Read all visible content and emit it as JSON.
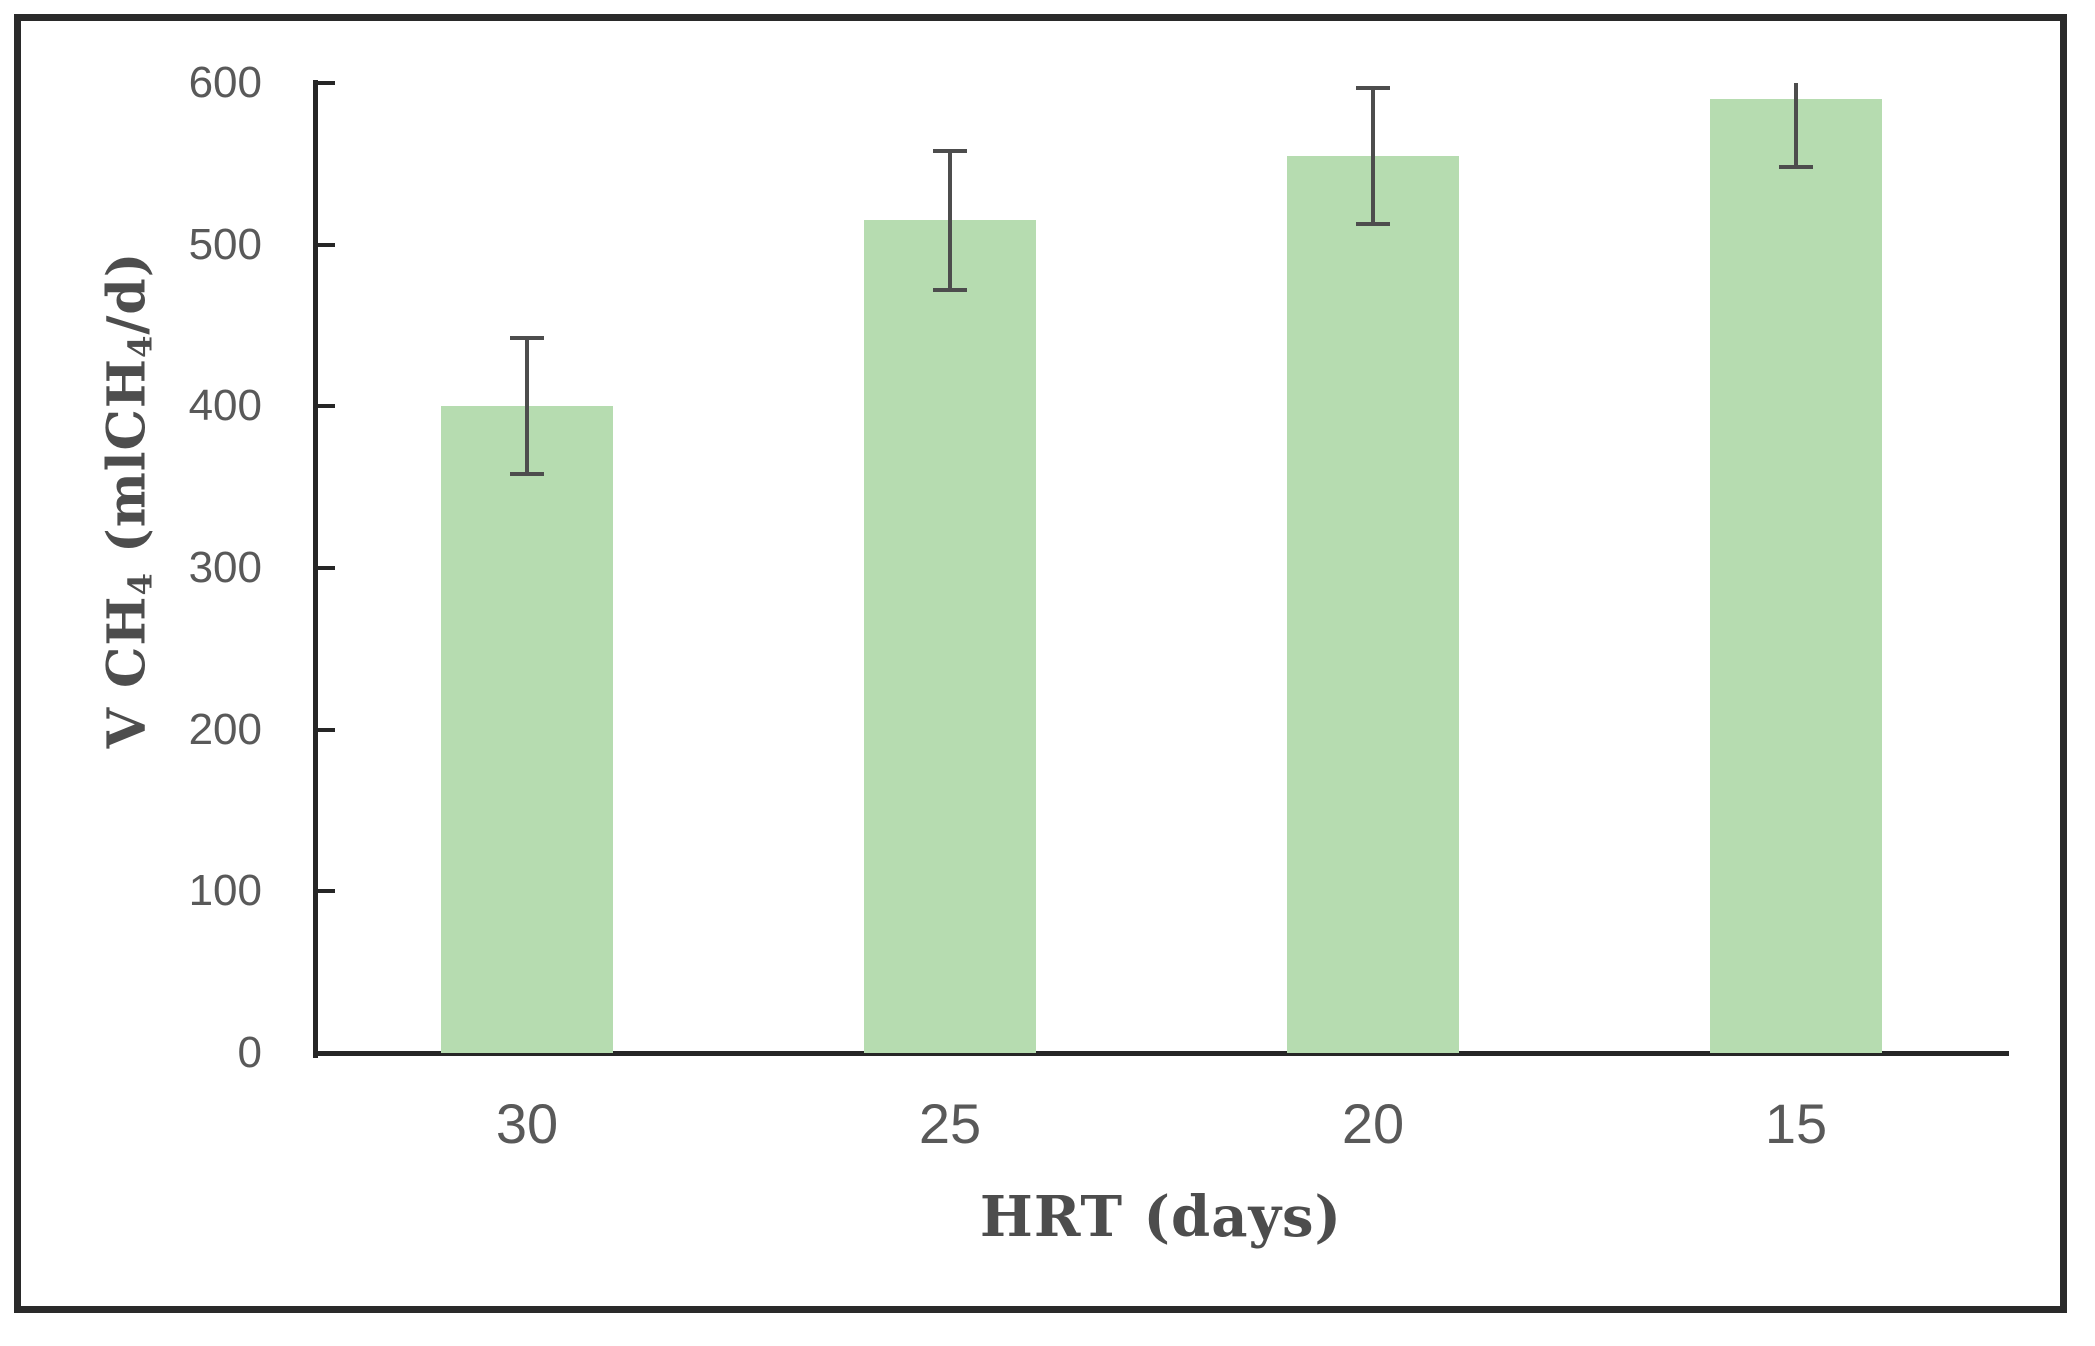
{
  "figure": {
    "background": "#ffffff",
    "border_color": "#2a2a2a"
  },
  "chart_data": {
    "type": "bar",
    "title": "",
    "xlabel": "HRT (days)",
    "ylabel": "V CH₄ (mlCH₄/d)",
    "ylabel_parts": {
      "p1": "V CH",
      "sub1": "4",
      "p2": " (mlCH",
      "sub2": "4",
      "p3": "/d)"
    },
    "categories": [
      "30",
      "25",
      "20",
      "15"
    ],
    "values": [
      400,
      515,
      555,
      590
    ],
    "error_bars": [
      42,
      43,
      42,
      42
    ],
    "y_ticks": [
      0,
      100,
      200,
      300,
      400,
      500,
      600
    ],
    "ylim": [
      0,
      600
    ],
    "grid": false,
    "legend": false,
    "bar_color": "#b6dcb0",
    "error_color": "#4d4d4d",
    "axis_color": "#262626",
    "tick_label_color": "#595959",
    "axis_title_color": "#4d4d4d",
    "error_top_clipped_at_ylim": [
      false,
      false,
      false,
      true
    ]
  }
}
